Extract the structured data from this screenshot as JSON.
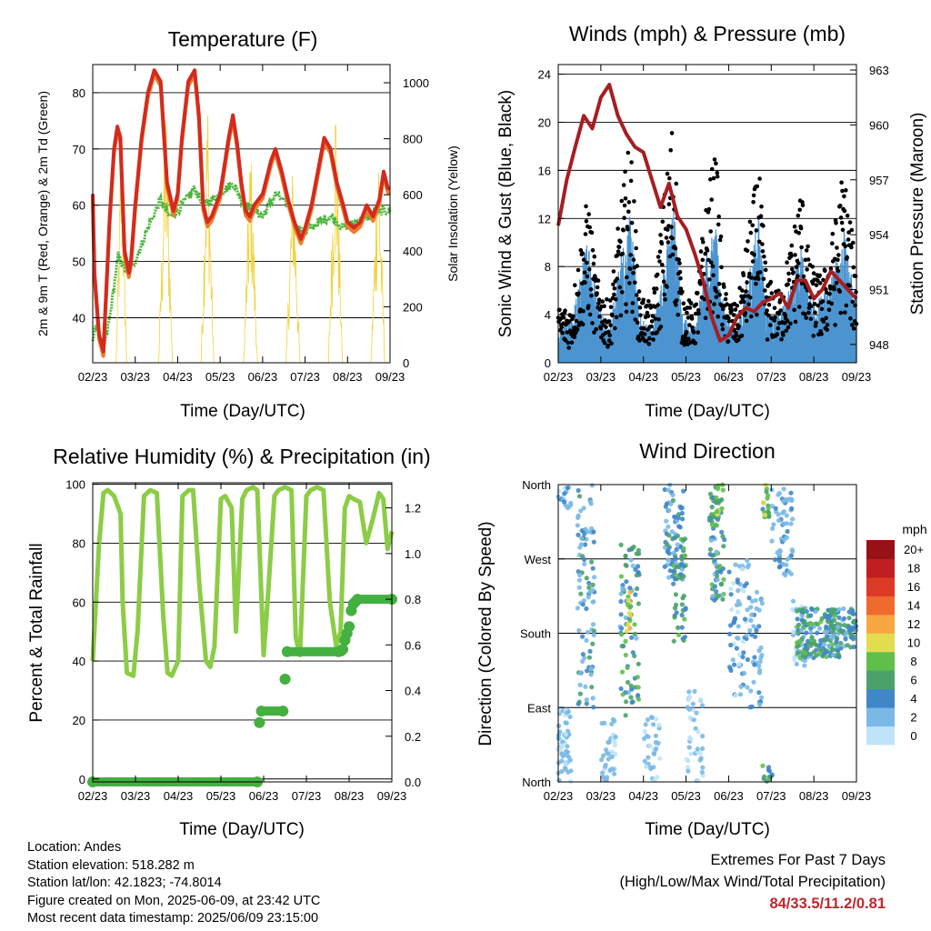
{
  "panels": {
    "temperature": {
      "title": "Temperature (F)",
      "xlabel": "Time (Day/UTC)",
      "ylabel_left": "2m & 9m T (Red, Orange) & 2m Td (Green)",
      "ylabel_right": "Solar Insolation (Yellow)"
    },
    "winds": {
      "title": "Winds (mph) & Pressure (mb)",
      "xlabel": "Time (Day/UTC)",
      "ylabel_left": "Sonic Wind & Gust (Blue, Black)",
      "ylabel_right": "Station Pressure (Maroon)"
    },
    "humidity": {
      "title": "Relative Humidity (%) & Precipitation (in)",
      "xlabel": "Time (Day/UTC)",
      "ylabel_left": "Percent & Total Rainfall"
    },
    "direction": {
      "title": "Wind Direction",
      "xlabel": "Time (Day/UTC)",
      "ylabel_left": "Direction (Colored By Speed)",
      "colorbar_title": "mph"
    }
  },
  "info": {
    "location": "Location: Andes",
    "elevation": "Station elevation: 518.282 m",
    "latlon": "Station lat/lon: 42.1823; -74.8014",
    "created": "Figure created on Mon, 2025-06-09, at 23:42 UTC",
    "recent": "Most recent data timestamp: 2025/06/09 23:15:00"
  },
  "extremes": {
    "line1": "Extremes For Past 7 Days",
    "line2": "(High/Low/Max Wind/Total Precipitation)",
    "values": "84/33.5/11.2/0.81"
  },
  "chart_data": [
    {
      "id": "temperature",
      "type": "line",
      "x_ticks": [
        "02/23",
        "03/23",
        "04/23",
        "05/23",
        "06/23",
        "07/23",
        "08/23",
        "09/23"
      ],
      "xlim_days": [
        0,
        7
      ],
      "ylim_left": [
        32,
        85
      ],
      "ylim_right": [
        0,
        1065
      ],
      "y_ticks_left": [
        40,
        50,
        60,
        70,
        80
      ],
      "y_ticks_right": [
        0,
        200,
        400,
        600,
        800,
        1000
      ],
      "colors": {
        "t2m": "#d42a1f",
        "t9m": "#ee7d2a",
        "td2m": "#4ab53c",
        "solar": "#f2d23b"
      },
      "series": [
        {
          "key": "t2m",
          "x": [
            0,
            0.04,
            0.15,
            0.25,
            0.3,
            0.4,
            0.5,
            0.58,
            0.65,
            0.75,
            0.85,
            0.9,
            1.0,
            1.15,
            1.3,
            1.45,
            1.6,
            1.75,
            1.9,
            2.0,
            2.1,
            2.25,
            2.4,
            2.5,
            2.6,
            2.7,
            2.8,
            3.0,
            3.2,
            3.3,
            3.4,
            3.5,
            3.6,
            3.7,
            3.8,
            4.0,
            4.2,
            4.3,
            4.45,
            4.6,
            4.75,
            4.9,
            5.0,
            5.15,
            5.3,
            5.45,
            5.6,
            5.75,
            5.9,
            6.0,
            6.15,
            6.3,
            6.45,
            6.6,
            6.75,
            6.85,
            6.95,
            7.0
          ],
          "y": [
            62,
            48,
            37,
            34,
            42,
            58,
            70,
            74,
            72,
            52,
            48,
            50,
            60,
            72,
            80,
            84,
            82,
            64,
            59,
            62,
            72,
            82,
            84,
            76,
            60,
            57,
            58,
            62,
            72,
            76,
            71,
            64,
            59,
            58,
            60,
            62,
            68,
            70,
            66,
            61,
            57,
            54,
            56,
            60,
            66,
            72,
            70,
            64,
            60,
            57,
            56,
            57,
            60,
            58,
            61,
            66,
            63,
            63
          ]
        },
        {
          "key": "td2m",
          "x": [
            0,
            0.1,
            0.25,
            0.4,
            0.6,
            0.8,
            1.0,
            1.3,
            1.6,
            1.8,
            2.0,
            2.2,
            2.4,
            2.6,
            3.0,
            3.3,
            3.5,
            3.8,
            4.0,
            4.3,
            4.6,
            4.8,
            5.0,
            5.3,
            5.6,
            5.9,
            6.2,
            6.5,
            6.8,
            7.0
          ],
          "y": [
            36,
            39,
            34,
            40,
            51,
            48,
            50,
            56,
            61,
            58,
            59,
            61,
            63,
            60,
            62,
            64,
            61,
            59,
            58,
            62,
            60,
            56,
            55,
            57,
            58,
            56,
            57,
            58,
            59,
            59
          ]
        },
        {
          "key": "solar",
          "x": [
            0.55,
            0.68,
            0.8,
            1.55,
            1.72,
            1.88,
            2.55,
            2.7,
            2.85,
            3.55,
            3.72,
            3.88,
            4.55,
            4.72,
            4.88,
            5.55,
            5.72,
            5.88,
            6.55,
            6.72,
            6.88
          ],
          "y": [
            0,
            950,
            0,
            0,
            1000,
            0,
            0,
            1050,
            0,
            0,
            850,
            0,
            0,
            800,
            0,
            0,
            1050,
            0,
            0,
            900,
            0
          ]
        }
      ]
    },
    {
      "id": "winds",
      "type": "line",
      "x_ticks": [
        "02/23",
        "03/23",
        "04/23",
        "05/23",
        "06/23",
        "07/23",
        "08/23",
        "09/23"
      ],
      "xlim_days": [
        0,
        7
      ],
      "ylim_left": [
        0,
        24.8
      ],
      "ylim_right": [
        947,
        963.3
      ],
      "y_ticks_left": [
        0,
        4,
        8,
        12,
        16,
        20,
        24
      ],
      "y_ticks_right": [
        948,
        951,
        954,
        957,
        960,
        963
      ],
      "colors": {
        "wind": "#4b94d0",
        "gust": "#000000",
        "pressure": "#a61e22"
      },
      "series": [
        {
          "key": "pressure",
          "x": [
            0,
            0.2,
            0.4,
            0.6,
            0.8,
            1.0,
            1.2,
            1.4,
            1.6,
            1.8,
            2.0,
            2.2,
            2.4,
            2.6,
            2.8,
            3.0,
            3.2,
            3.4,
            3.6,
            3.8,
            4.0,
            4.2,
            4.4,
            4.6,
            4.8,
            5.0,
            5.2,
            5.4,
            5.6,
            5.8,
            6.0,
            6.2,
            6.4,
            6.6,
            6.8,
            7.0
          ],
          "y": [
            954.5,
            957,
            958.8,
            960.5,
            959.8,
            961.5,
            962.2,
            960.5,
            959.5,
            958.8,
            958.5,
            957,
            955.5,
            956.8,
            955,
            954.3,
            953,
            951.5,
            949.5,
            948.2,
            948.5,
            949.5,
            950,
            949.8,
            950.3,
            950.5,
            950.8,
            950,
            951.5,
            951.5,
            950.5,
            951,
            952,
            951.5,
            951,
            950.5
          ]
        },
        {
          "key": "wind",
          "x": [
            0,
            0.3,
            0.5,
            0.7,
            0.9,
            1.2,
            1.5,
            1.7,
            1.9,
            2.2,
            2.5,
            2.7,
            2.9,
            3.2,
            3.5,
            3.7,
            3.9,
            4.2,
            4.5,
            4.7,
            4.9,
            5.2,
            5.5,
            5.7,
            5.9,
            6.2,
            6.5,
            6.7,
            6.9,
            7.0
          ],
          "y": [
            2,
            2.5,
            5,
            8,
            4,
            2,
            7,
            9,
            3,
            2,
            6,
            10,
            3,
            2,
            7,
            8,
            3,
            2,
            6,
            9,
            3,
            3,
            5,
            7,
            4,
            4,
            6,
            8,
            5,
            4
          ]
        },
        {
          "key": "gust",
          "x": [
            0,
            0.3,
            0.5,
            0.7,
            0.9,
            1.2,
            1.5,
            1.7,
            1.9,
            2.2,
            2.5,
            2.7,
            2.9,
            3.2,
            3.5,
            3.7,
            3.9,
            4.2,
            4.5,
            4.7,
            4.9,
            5.2,
            5.5,
            5.7,
            5.9,
            6.2,
            6.5,
            6.7,
            6.9,
            7.0
          ],
          "y": [
            4,
            4,
            8,
            12,
            6,
            4,
            12,
            16,
            5,
            4,
            12,
            18,
            5,
            4,
            12,
            15,
            5,
            4,
            10,
            14,
            6,
            5,
            9,
            13,
            7,
            6,
            10,
            14,
            9,
            7
          ]
        }
      ]
    },
    {
      "id": "humidity",
      "type": "line",
      "x_ticks": [
        "02/23",
        "03/23",
        "04/23",
        "05/23",
        "06/23",
        "07/23",
        "08/23",
        "09/23"
      ],
      "xlim_days": [
        0,
        7
      ],
      "ylim_left": [
        -1,
        100.5
      ],
      "ylim_right": [
        0,
        1.31
      ],
      "y_ticks_left": [
        0,
        20,
        40,
        60,
        80,
        100
      ],
      "y_ticks_right": [
        0.0,
        0.2,
        0.4,
        0.6,
        0.8,
        1.0,
        1.2
      ],
      "colors": {
        "rh": "#8ccc47",
        "precip": "#43b040"
      },
      "series": [
        {
          "key": "rh",
          "x": [
            0,
            0.15,
            0.25,
            0.35,
            0.5,
            0.65,
            0.7,
            0.8,
            0.95,
            1.05,
            1.2,
            1.35,
            1.5,
            1.65,
            1.75,
            1.85,
            2.0,
            2.1,
            2.25,
            2.35,
            2.5,
            2.65,
            2.75,
            2.85,
            3.0,
            3.1,
            3.25,
            3.35,
            3.5,
            3.6,
            3.75,
            3.85,
            4.0,
            4.1,
            4.25,
            4.35,
            4.5,
            4.65,
            4.75,
            4.85,
            5.0,
            5.1,
            5.25,
            5.4,
            5.55,
            5.7,
            5.8,
            5.9,
            6.0,
            6.1,
            6.25,
            6.4,
            6.55,
            6.7,
            6.8,
            6.9,
            7.0
          ],
          "y": [
            40,
            80,
            97,
            98,
            96,
            90,
            60,
            36,
            35,
            50,
            96,
            98,
            97,
            55,
            36,
            35,
            40,
            96,
            98,
            98,
            65,
            40,
            38,
            45,
            95,
            96,
            92,
            50,
            95,
            98,
            99,
            98,
            42,
            62,
            96,
            98,
            99,
            98,
            48,
            42,
            96,
            98,
            99,
            98,
            60,
            45,
            50,
            92,
            96,
            95,
            94,
            80,
            88,
            97,
            95,
            78,
            84
          ]
        },
        {
          "key": "precip",
          "x": [
            0,
            3.85,
            3.9,
            3.95,
            4.45,
            4.5,
            4.55,
            5.75,
            5.85,
            5.9,
            5.95,
            6.0,
            6.05,
            6.1,
            6.15,
            6.2,
            7.0
          ],
          "y": [
            0,
            0,
            0.26,
            0.31,
            0.31,
            0.45,
            0.57,
            0.57,
            0.58,
            0.62,
            0.65,
            0.68,
            0.75,
            0.78,
            0.79,
            0.8,
            0.8
          ]
        }
      ]
    },
    {
      "id": "direction",
      "type": "scatter",
      "x_ticks": [
        "02/23",
        "03/23",
        "04/23",
        "05/23",
        "06/23",
        "07/23",
        "08/23",
        "09/23"
      ],
      "xlim_days": [
        0,
        7
      ],
      "y_ticks": [
        "North",
        "East",
        "South",
        "West",
        "North"
      ],
      "ylim_deg": [
        0,
        360
      ],
      "colorbar": {
        "labels": [
          "0",
          "2",
          "4",
          "6",
          "8",
          "10",
          "12",
          "14",
          "16",
          "18",
          "20+"
        ],
        "colors": [
          "#bfe4f8",
          "#7ab9e6",
          "#3f87c7",
          "#4aa26a",
          "#5fbf4a",
          "#e2dc4f",
          "#f6a742",
          "#ee6a2e",
          "#dd3a25",
          "#c01f21",
          "#961216"
        ]
      }
    }
  ]
}
